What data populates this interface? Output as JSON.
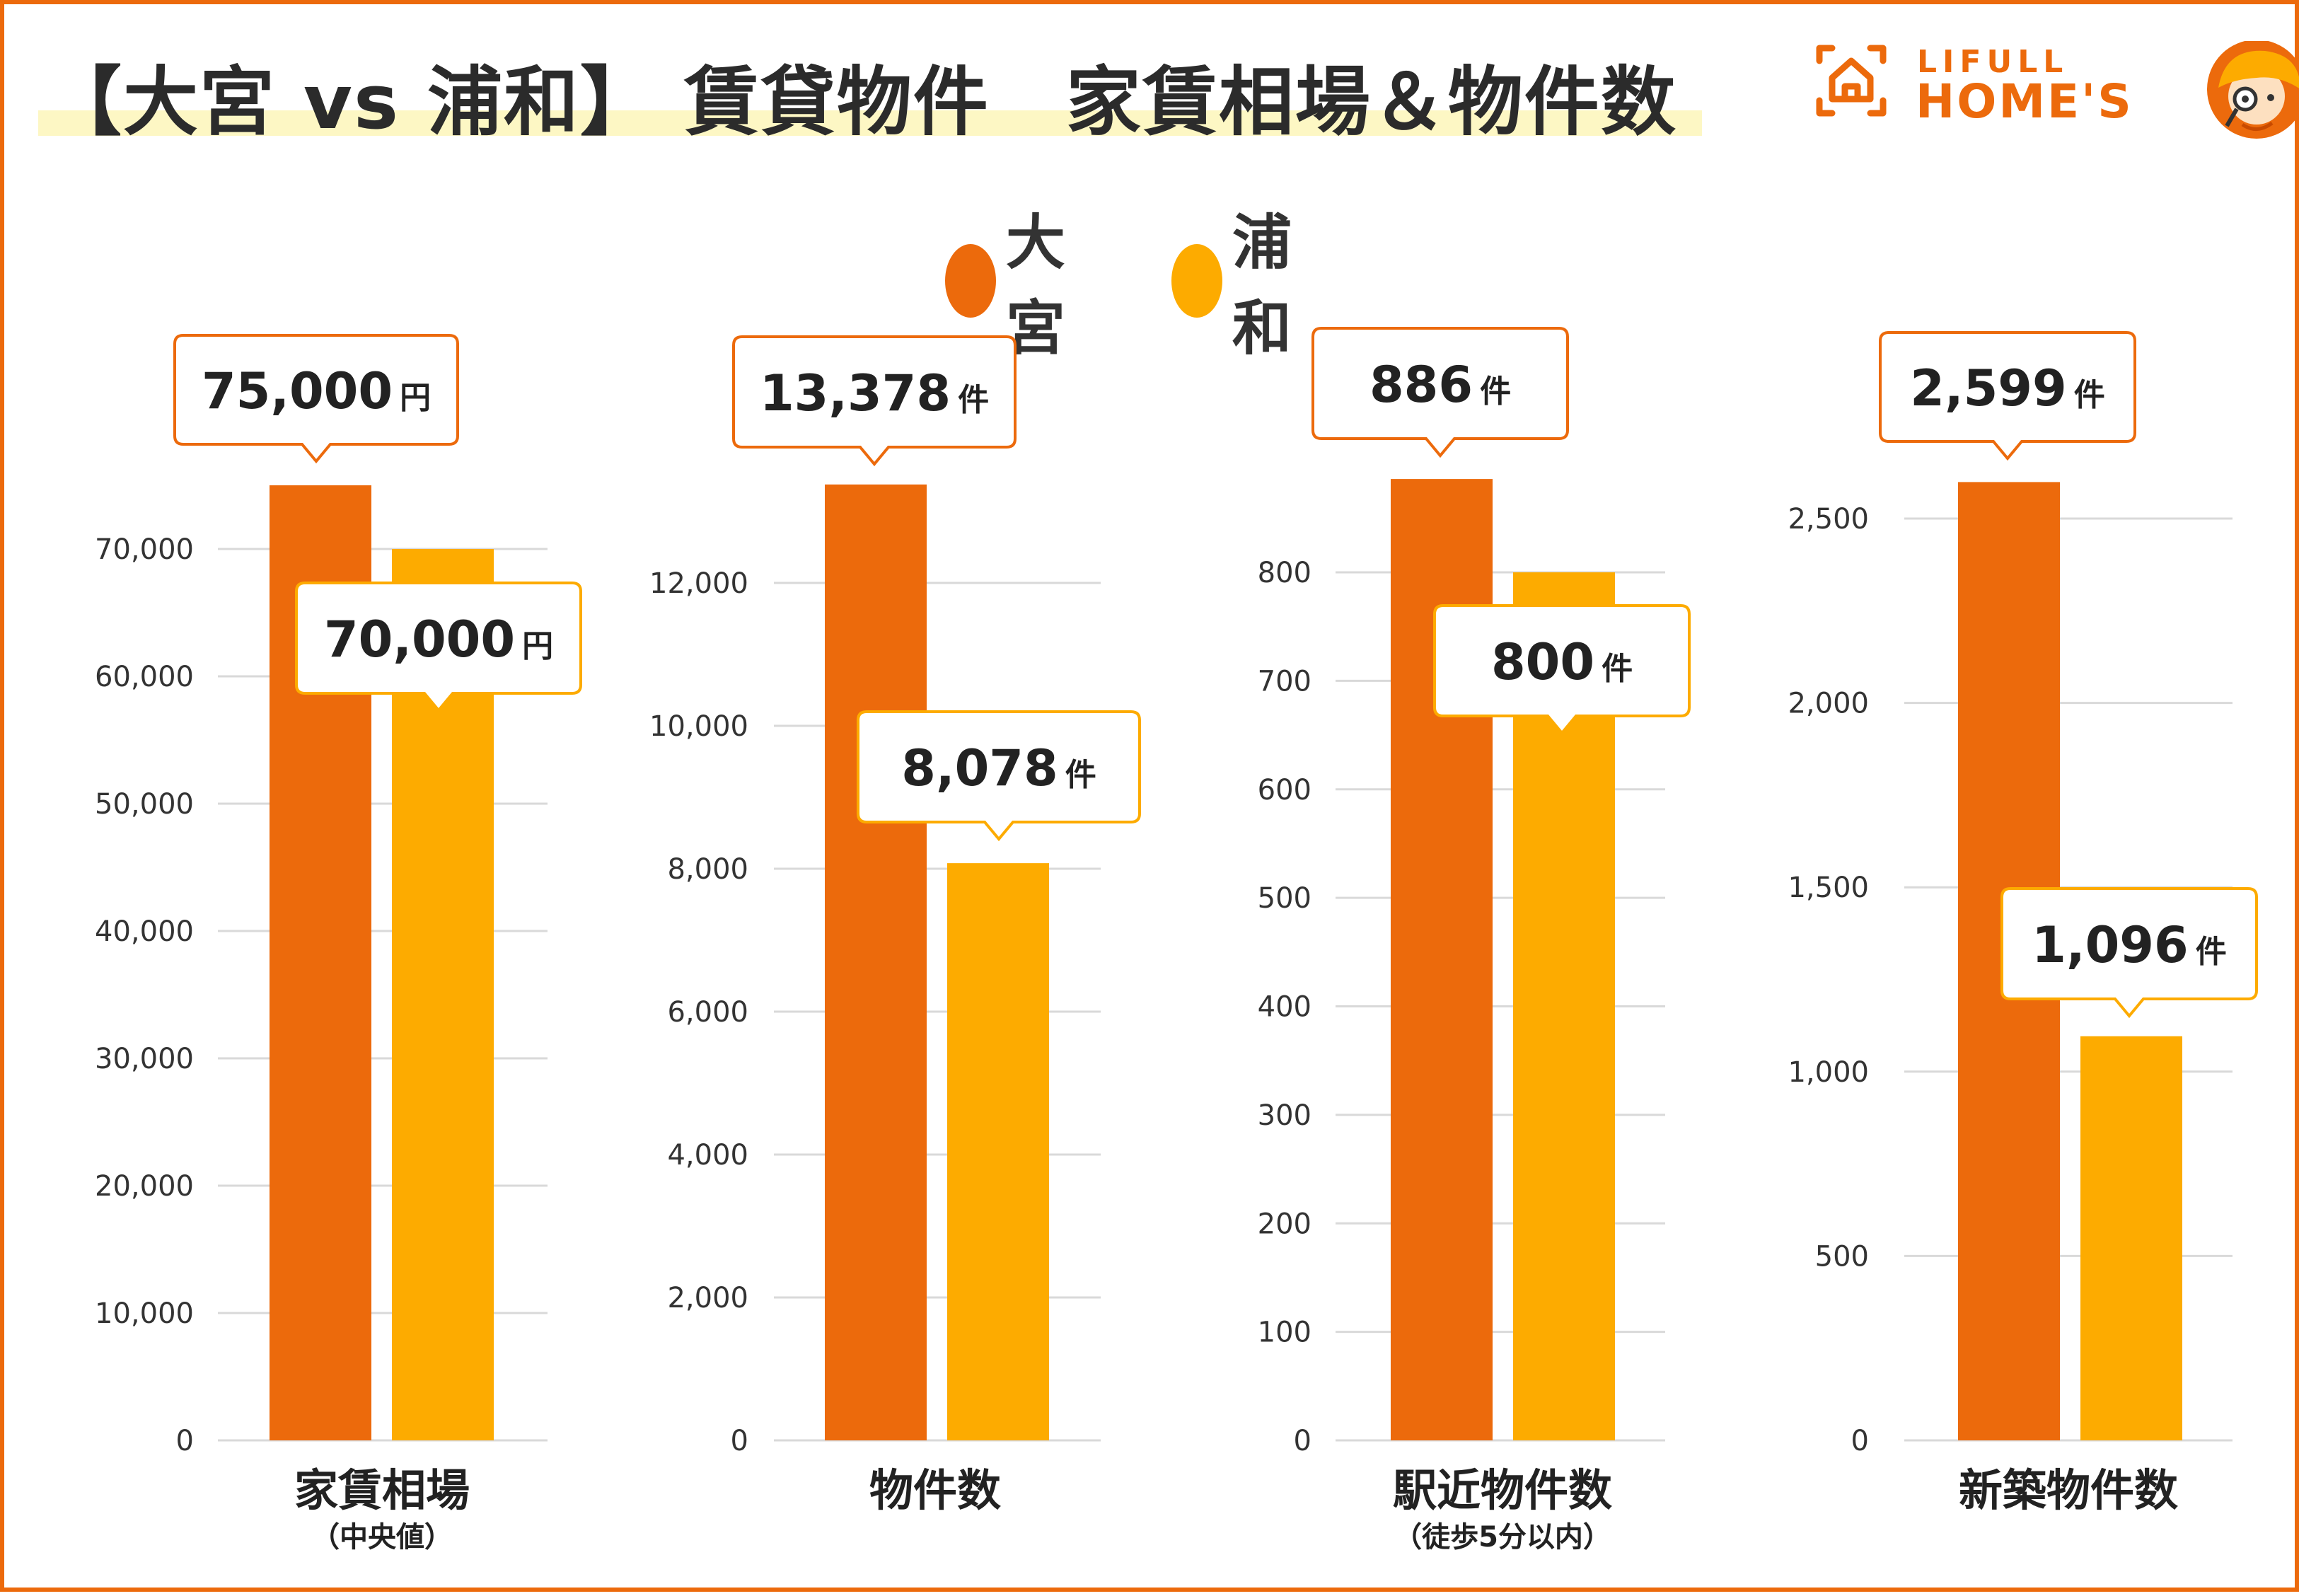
{
  "header": {
    "title": "【大宮 vs 浦和】 賃貸物件　家賃相場＆物件数"
  },
  "logo": {
    "line1": "LIFULL",
    "line2": "HOME'S",
    "brand_color": "#ec6a0c",
    "icon": "house-icon",
    "mascot": "mascot-icon"
  },
  "legend": [
    {
      "name": "大宮",
      "color": "#ec6a0c"
    },
    {
      "name": "浦和",
      "color": "#fdab00"
    }
  ],
  "chart_data": [
    {
      "type": "bar",
      "title": "家賃相場",
      "subtitle": "（中央値）",
      "series": [
        {
          "name": "大宮",
          "value": 75000,
          "label": "75,000",
          "unit": "円",
          "color": "#ec6a0c"
        },
        {
          "name": "浦和",
          "value": 70000,
          "label": "70,000",
          "unit": "円",
          "color": "#fdab00"
        }
      ],
      "ylim": [
        0,
        70000
      ],
      "yticks": [
        0,
        10000,
        20000,
        30000,
        40000,
        50000,
        60000,
        70000
      ],
      "ytick_labels": [
        "0",
        "10,000",
        "20,000",
        "30,000",
        "40,000",
        "50,000",
        "60,000",
        "70,000"
      ],
      "grid": true
    },
    {
      "type": "bar",
      "title": "物件数",
      "subtitle": "",
      "series": [
        {
          "name": "大宮",
          "value": 13378,
          "label": "13,378",
          "unit": "件",
          "color": "#ec6a0c"
        },
        {
          "name": "浦和",
          "value": 8078,
          "label": "8,078",
          "unit": "件",
          "color": "#fdab00"
        }
      ],
      "ylim": [
        0,
        12000
      ],
      "yticks": [
        0,
        2000,
        4000,
        6000,
        8000,
        10000,
        12000
      ],
      "ytick_labels": [
        "0",
        "2,000",
        "4,000",
        "6,000",
        "8,000",
        "10,000",
        "12,000"
      ],
      "grid": true
    },
    {
      "type": "bar",
      "title": "駅近物件数",
      "subtitle": "（徒歩5分以内）",
      "series": [
        {
          "name": "大宮",
          "value": 886,
          "label": "886",
          "unit": "件",
          "color": "#ec6a0c"
        },
        {
          "name": "浦和",
          "value": 800,
          "label": "800",
          "unit": "件",
          "color": "#fdab00"
        }
      ],
      "ylim": [
        0,
        800
      ],
      "yticks": [
        0,
        100,
        200,
        300,
        400,
        500,
        600,
        700,
        800
      ],
      "ytick_labels": [
        "0",
        "100",
        "200",
        "300",
        "400",
        "500",
        "600",
        "700",
        "800"
      ],
      "grid": true
    },
    {
      "type": "bar",
      "title": "新築物件数",
      "subtitle": "",
      "series": [
        {
          "name": "大宮",
          "value": 2599,
          "label": "2,599",
          "unit": "件",
          "color": "#ec6a0c"
        },
        {
          "name": "浦和",
          "value": 1096,
          "label": "1,096",
          "unit": "件",
          "color": "#fdab00"
        }
      ],
      "ylim": [
        0,
        2500
      ],
      "yticks": [
        0,
        500,
        1000,
        1500,
        2000,
        2500
      ],
      "ytick_labels": [
        "0",
        "500",
        "1,000",
        "1,500",
        "2,000",
        "2,500"
      ],
      "grid": true
    }
  ]
}
